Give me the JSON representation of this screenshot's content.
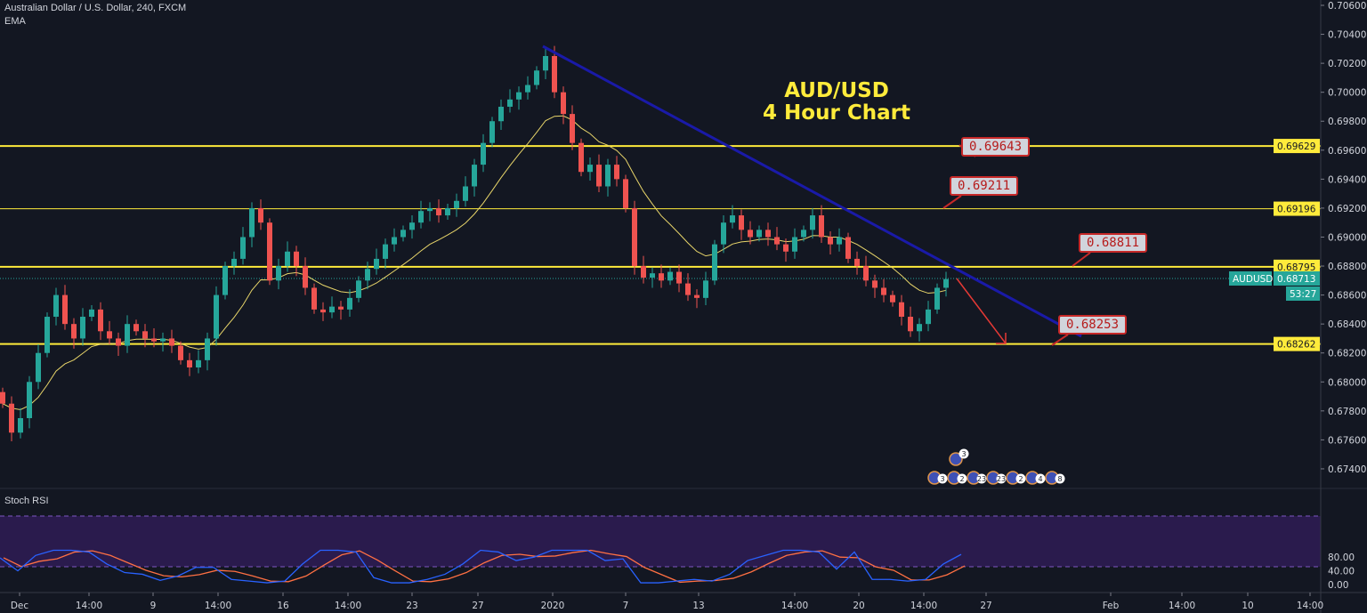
{
  "legend": {
    "symbol": "Australian Dollar / U.S. Dollar, 240, FXCM",
    "indicator": "EMA"
  },
  "annotation_title": {
    "line1": "AUD/USD",
    "line2": "4 Hour Chart"
  },
  "callouts": [
    "0.69643",
    "0.69211",
    "0.68811",
    "0.68253"
  ],
  "colors": {
    "background": "#131722",
    "up": "#26a69a",
    "down": "#ef5350",
    "levels": "#ffeb3b",
    "trendline": "#1a1aa8",
    "ema": "#e8d56a",
    "stoch_k": "#2962ff",
    "stoch_d": "#ff7043",
    "stoch_band": "#2a1b4d"
  },
  "price_axis": {
    "ticks": [
      "0.70600",
      "0.70400",
      "0.70200",
      "0.70000",
      "0.69800",
      "0.69600",
      "0.69400",
      "0.69200",
      "0.69000",
      "0.68800",
      "0.68600",
      "0.68400",
      "0.68200",
      "0.68000",
      "0.67800",
      "0.67600",
      "0.67400"
    ]
  },
  "level_tags": [
    "0.69629",
    "0.69196",
    "0.68795",
    "0.68262"
  ],
  "current": {
    "symbol": "AUDUSD",
    "price": "0.68713",
    "countdown": "53:27"
  },
  "time_axis": [
    "Dec",
    "14:00",
    "9",
    "14:00",
    "16",
    "14:00",
    "23",
    "27",
    "2020",
    "7",
    "13",
    "14:00",
    "20",
    "14:00",
    "27",
    "Feb",
    "14:00",
    "10",
    "14:00"
  ],
  "stoch": {
    "label": "Stoch RSI",
    "ticks": [
      "80.00",
      "40.00",
      "0.00"
    ],
    "upper_band": 80,
    "lower_band": 20
  },
  "events": [
    {
      "count": "3"
    },
    {
      "count": "3"
    },
    {
      "count": "2"
    },
    {
      "count": "23"
    },
    {
      "count": "23"
    },
    {
      "count": "2"
    },
    {
      "count": "4"
    },
    {
      "count": "8"
    }
  ],
  "chart_data": {
    "type": "candlestick",
    "title": "Australian Dollar / U.S. Dollar, 240, FXCM",
    "ylim": [
      0.674,
      0.706
    ],
    "closes": [
      0.6785,
      0.6765,
      0.6775,
      0.68,
      0.682,
      0.6845,
      0.686,
      0.684,
      0.683,
      0.6845,
      0.685,
      0.6835,
      0.683,
      0.6825,
      0.684,
      0.6835,
      0.683,
      0.6828,
      0.683,
      0.6825,
      0.6815,
      0.681,
      0.6815,
      0.683,
      0.686,
      0.688,
      0.6885,
      0.69,
      0.692,
      0.691,
      0.687,
      0.688,
      0.689,
      0.688,
      0.6865,
      0.685,
      0.6848,
      0.6852,
      0.685,
      0.6858,
      0.687,
      0.6878,
      0.6885,
      0.6895,
      0.69,
      0.6905,
      0.691,
      0.6918,
      0.692,
      0.6915,
      0.692,
      0.6925,
      0.6935,
      0.695,
      0.6965,
      0.698,
      0.699,
      0.6995,
      0.7,
      0.7005,
      0.7015,
      0.7025,
      0.7,
      0.6985,
      0.6965,
      0.6945,
      0.695,
      0.6935,
      0.695,
      0.694,
      0.692,
      0.688,
      0.6872,
      0.6875,
      0.687,
      0.6876,
      0.6868,
      0.686,
      0.6858,
      0.687,
      0.6895,
      0.691,
      0.6915,
      0.6905,
      0.69,
      0.6905,
      0.69,
      0.6895,
      0.689,
      0.69,
      0.6905,
      0.6915,
      0.69,
      0.6895,
      0.69,
      0.6885,
      0.688,
      0.687,
      0.6865,
      0.686,
      0.6855,
      0.6845,
      0.6835,
      0.684,
      0.685,
      0.6865,
      0.6871
    ],
    "horizontal_levels": [
      0.69629,
      0.69196,
      0.68795,
      0.68262
    ],
    "stoch_k": [
      78,
      40,
      85,
      100,
      100,
      95,
      60,
      35,
      30,
      12,
      25,
      50,
      50,
      15,
      10,
      5,
      10,
      60,
      100,
      100,
      95,
      20,
      5,
      5,
      15,
      30,
      60,
      100,
      95,
      70,
      80,
      100,
      100,
      100,
      70,
      75,
      5,
      5,
      10,
      15,
      10,
      30,
      70,
      85,
      100,
      100,
      95,
      45,
      95,
      15,
      15,
      10,
      15,
      60,
      88
    ],
    "stoch_ylim": [
      0,
      100
    ]
  }
}
